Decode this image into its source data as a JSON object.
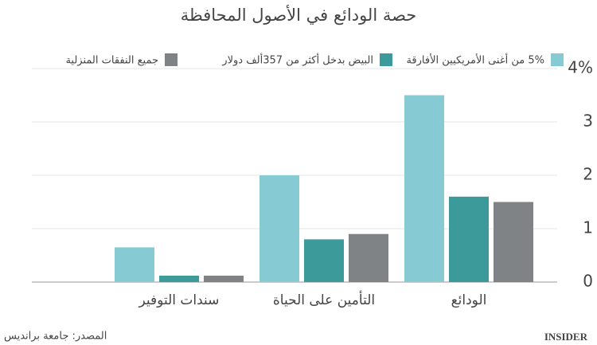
{
  "chart_data": {
    "type": "bar",
    "title": "حصة الودائع في الأصول المحافظة",
    "categories": [
      "الودائع",
      "التأمين على الحياة",
      "سندات التوفير"
    ],
    "series": [
      {
        "name": "5% من أغنى الأمريكيين الأفارقة",
        "color": "#86cad3",
        "values": [
          3.5,
          2.0,
          0.65
        ]
      },
      {
        "name": "البيض بدخل أكثر من 357ألف دولار",
        "color": "#3d9a9b",
        "values": [
          1.6,
          0.8,
          0.12
        ]
      },
      {
        "name": "جميع النفقات المنزلية",
        "color": "#7f8386",
        "values": [
          1.5,
          0.9,
          0.12
        ]
      }
    ],
    "ylim": [
      0,
      4
    ],
    "yticks": [
      0,
      1,
      2,
      3,
      {
        "value": 4,
        "label": "4%"
      }
    ],
    "grid": true,
    "source": "المصدر: جامعة برانديس",
    "logo": "INSIDER"
  }
}
